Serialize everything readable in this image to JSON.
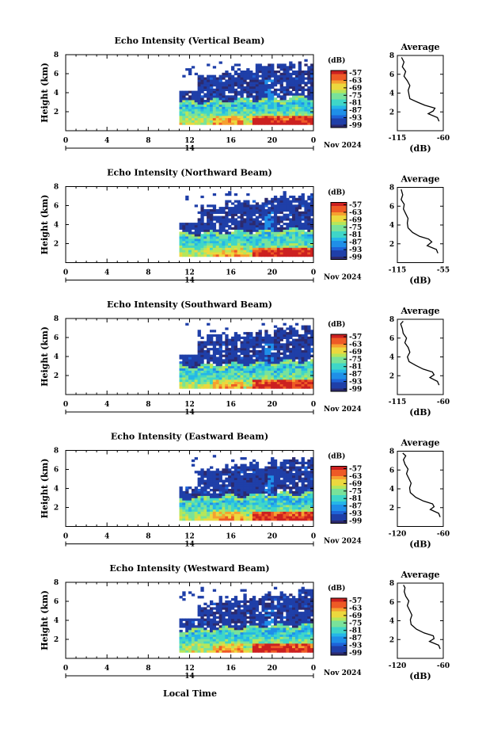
{
  "figure": {
    "xlabel": "Local Time",
    "date_label": "Nov 2024",
    "colorbar_unit": "(dB)",
    "avg_title": "Average",
    "avg_unit": "(dB)"
  },
  "chart_data": [
    {
      "type": "heatmap",
      "title": "Echo Intensity (Vertical Beam)",
      "xlabel": "Local Time",
      "ylabel": "Height (km)",
      "x_ticks": [
        "0",
        "4",
        "8",
        "12",
        "16",
        "20",
        "0"
      ],
      "x_day_label": "14",
      "xlim_hours": [
        0,
        24
      ],
      "y_ticks": [
        "2",
        "4",
        "6",
        "8"
      ],
      "ylim_km": [
        0,
        8
      ],
      "data_start_hour": 11,
      "colorbar": {
        "unit": "(dB)",
        "ticks": [
          -57,
          -63,
          -69,
          -75,
          -81,
          -87,
          -93,
          -99
        ]
      },
      "average_profile": {
        "title": "Average",
        "xlabel": "(dB)",
        "x_ticks": [
          "-115",
          "-60"
        ],
        "xlim": [
          -115,
          -60
        ],
        "y_ticks": [
          "2",
          "4",
          "6",
          "8"
        ],
        "points": [
          [
            -65,
            1
          ],
          [
            -67,
            1.4
          ],
          [
            -78,
            1.8
          ],
          [
            -72,
            2.1
          ],
          [
            -70,
            2.4
          ],
          [
            -82,
            2.7
          ],
          [
            -90,
            3
          ],
          [
            -100,
            3.4
          ],
          [
            -101,
            3.8
          ],
          [
            -102,
            4.3
          ],
          [
            -100,
            4.8
          ],
          [
            -103,
            5.3
          ],
          [
            -107,
            5.8
          ],
          [
            -105,
            6.3
          ],
          [
            -109,
            6.8
          ],
          [
            -107,
            7.3
          ],
          [
            -110,
            7.8
          ]
        ]
      }
    },
    {
      "type": "heatmap",
      "title": "Echo Intensity (Northward Beam)",
      "xlabel": "Local Time",
      "ylabel": "Height (km)",
      "x_ticks": [
        "0",
        "4",
        "8",
        "12",
        "16",
        "20",
        "0"
      ],
      "x_day_label": "14",
      "xlim_hours": [
        0,
        24
      ],
      "y_ticks": [
        "2",
        "4",
        "6",
        "8"
      ],
      "ylim_km": [
        0,
        8
      ],
      "data_start_hour": 11,
      "colorbar": {
        "unit": "(dB)",
        "ticks": [
          -57,
          -63,
          -69,
          -75,
          -81,
          -87,
          -93,
          -99
        ]
      },
      "average_profile": {
        "title": "Average",
        "xlabel": "(dB)",
        "x_ticks": [
          "-115",
          "-55"
        ],
        "xlim": [
          -115,
          -55
        ],
        "y_ticks": [
          "2",
          "4",
          "6",
          "8"
        ],
        "points": [
          [
            -62,
            1
          ],
          [
            -64,
            1.4
          ],
          [
            -76,
            1.8
          ],
          [
            -70,
            2.2
          ],
          [
            -74,
            2.5
          ],
          [
            -86,
            2.8
          ],
          [
            -95,
            3.2
          ],
          [
            -101,
            3.7
          ],
          [
            -102,
            4.2
          ],
          [
            -101,
            4.7
          ],
          [
            -104,
            5.2
          ],
          [
            -107,
            5.7
          ],
          [
            -106,
            6.2
          ],
          [
            -110,
            6.7
          ],
          [
            -108,
            7.2
          ],
          [
            -110,
            7.8
          ]
        ]
      }
    },
    {
      "type": "heatmap",
      "title": "Echo Intensity (Southward Beam)",
      "xlabel": "Local Time",
      "ylabel": "Height (km)",
      "x_ticks": [
        "0",
        "4",
        "8",
        "12",
        "16",
        "20",
        "0"
      ],
      "x_day_label": "14",
      "xlim_hours": [
        0,
        24
      ],
      "y_ticks": [
        "2",
        "4",
        "6",
        "8"
      ],
      "ylim_km": [
        0,
        8
      ],
      "data_start_hour": 11,
      "colorbar": {
        "unit": "(dB)",
        "ticks": [
          -57,
          -63,
          -69,
          -75,
          -81,
          -87,
          -93,
          -99
        ]
      },
      "average_profile": {
        "title": "Average",
        "xlabel": "(dB)",
        "x_ticks": [
          "-115",
          "-60"
        ],
        "xlim": [
          -115,
          -60
        ],
        "y_ticks": [
          "2",
          "4",
          "6",
          "8"
        ],
        "points": [
          [
            -65,
            1
          ],
          [
            -67,
            1.4
          ],
          [
            -76,
            1.8
          ],
          [
            -71,
            2.1
          ],
          [
            -73,
            2.4
          ],
          [
            -84,
            2.7
          ],
          [
            -93,
            3.1
          ],
          [
            -101,
            3.5
          ],
          [
            -103,
            4
          ],
          [
            -100,
            4.5
          ],
          [
            -102,
            5
          ],
          [
            -106,
            5.5
          ],
          [
            -104,
            6
          ],
          [
            -108,
            6.5
          ],
          [
            -109,
            7
          ],
          [
            -111,
            7.5
          ],
          [
            -108,
            7.8
          ]
        ]
      }
    },
    {
      "type": "heatmap",
      "title": "Echo Intensity (Eastward Beam)",
      "xlabel": "Local Time",
      "ylabel": "Height (km)",
      "x_ticks": [
        "0",
        "4",
        "8",
        "12",
        "16",
        "20",
        "0"
      ],
      "x_day_label": "14",
      "xlim_hours": [
        0,
        24
      ],
      "y_ticks": [
        "2",
        "4",
        "6",
        "8"
      ],
      "ylim_km": [
        0,
        8
      ],
      "data_start_hour": 11,
      "colorbar": {
        "unit": "(dB)",
        "ticks": [
          -57,
          -63,
          -69,
          -75,
          -81,
          -87,
          -93,
          -99
        ]
      },
      "average_profile": {
        "title": "Average",
        "xlabel": "(dB)",
        "x_ticks": [
          "-120",
          "-60"
        ],
        "xlim": [
          -120,
          -60
        ],
        "y_ticks": [
          "2",
          "4",
          "6",
          "8"
        ],
        "points": [
          [
            -64,
            1
          ],
          [
            -66,
            1.4
          ],
          [
            -77,
            1.8
          ],
          [
            -72,
            2.1
          ],
          [
            -74,
            2.4
          ],
          [
            -86,
            2.7
          ],
          [
            -96,
            3.1
          ],
          [
            -103,
            3.6
          ],
          [
            -104,
            4.1
          ],
          [
            -102,
            4.6
          ],
          [
            -105,
            5.1
          ],
          [
            -108,
            5.6
          ],
          [
            -106,
            6.1
          ],
          [
            -110,
            6.6
          ],
          [
            -112,
            7.1
          ],
          [
            -109,
            7.5
          ],
          [
            -113,
            7.8
          ]
        ]
      }
    },
    {
      "type": "heatmap",
      "title": "Echo Intensity (Westward Beam)",
      "xlabel": "Local Time",
      "ylabel": "Height (km)",
      "x_ticks": [
        "0",
        "4",
        "8",
        "12",
        "16",
        "20",
        "0"
      ],
      "x_day_label": "14",
      "xlim_hours": [
        0,
        24
      ],
      "y_ticks": [
        "2",
        "4",
        "6",
        "8"
      ],
      "ylim_km": [
        0,
        8
      ],
      "data_start_hour": 11,
      "colorbar": {
        "unit": "(dB)",
        "ticks": [
          -57,
          -63,
          -69,
          -75,
          -81,
          -87,
          -93,
          -99
        ]
      },
      "average_profile": {
        "title": "Average",
        "xlabel": "(dB)",
        "x_ticks": [
          "-120",
          "-60"
        ],
        "xlim": [
          -120,
          -60
        ],
        "y_ticks": [
          "2",
          "4",
          "6",
          "8"
        ],
        "points": [
          [
            -64,
            1
          ],
          [
            -66,
            1.4
          ],
          [
            -78,
            1.8
          ],
          [
            -72,
            2.1
          ],
          [
            -73,
            2.4
          ],
          [
            -85,
            2.7
          ],
          [
            -95,
            3.1
          ],
          [
            -102,
            3.6
          ],
          [
            -103,
            4.1
          ],
          [
            -101,
            4.6
          ],
          [
            -104,
            5.1
          ],
          [
            -107,
            5.6
          ],
          [
            -105,
            6.1
          ],
          [
            -109,
            6.6
          ],
          [
            -111,
            7.1
          ],
          [
            -110,
            7.5
          ],
          [
            -112,
            7.8
          ]
        ]
      }
    }
  ]
}
